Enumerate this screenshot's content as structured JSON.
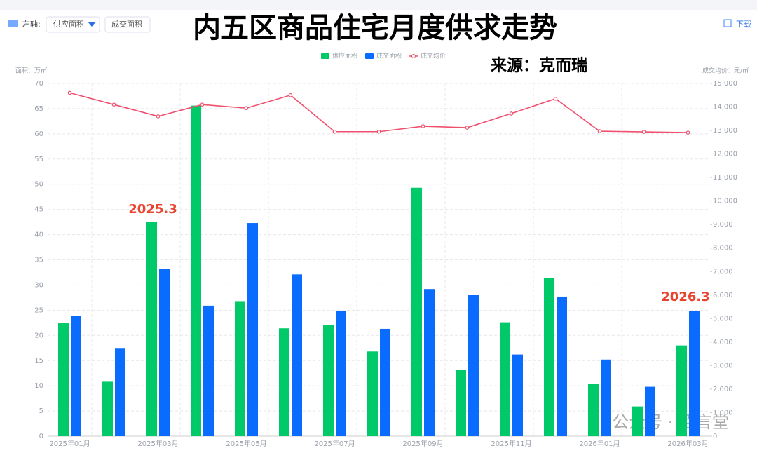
{
  "chart_data": {
    "type": "bar",
    "title": "内五区商品住宅月度供求走势",
    "source": "来源：克而瑞",
    "toolbar": {
      "axis_label": "左轴:",
      "dropdown": "供应面积",
      "option": "成交面积",
      "download": "下载"
    },
    "watermark": "公众号 · 佰言堂",
    "ylabel": "面积：万㎡",
    "y2label": "成交均价：元/㎡",
    "categories": [
      "2025年01月",
      null,
      "2025年03月",
      null,
      "2025年05月",
      null,
      "2025年07月",
      null,
      "2025年09月",
      null,
      "2025年11月",
      null,
      "2026年01月",
      null,
      "2026年03月"
    ],
    "series": [
      {
        "name": "供应面积",
        "color": "#00c96a",
        "values": [
          22.4,
          10.8,
          42.5,
          65.6,
          26.8,
          21.4,
          22.1,
          16.8,
          49.3,
          13.2,
          22.6,
          31.4,
          10.4,
          5.9,
          18.0
        ]
      },
      {
        "name": "成交面积",
        "color": "#0a6cff",
        "values": [
          23.8,
          17.5,
          33.2,
          25.9,
          42.3,
          32.1,
          24.9,
          21.3,
          29.2,
          28.1,
          16.2,
          27.7,
          15.2,
          9.8,
          24.9
        ]
      },
      {
        "name": "成交均价",
        "color": "#f0506e",
        "type": "line",
        "axis": "y2",
        "values": [
          14600,
          14100,
          13600,
          14100,
          13950,
          14500,
          12950,
          12950,
          13180,
          13120,
          13720,
          14350,
          12970,
          12940,
          12910
        ]
      }
    ],
    "ylim": [
      0,
      70
    ],
    "yticks": [
      0,
      5,
      10,
      15,
      20,
      25,
      30,
      35,
      40,
      45,
      50,
      55,
      60,
      65,
      70
    ],
    "y2lim": [
      0,
      15000
    ],
    "y2ticks": [
      0,
      {
        "value": 1000,
        "label": "1,000"
      },
      {
        "value": 2000,
        "label": "2,000"
      },
      {
        "value": 3000,
        "label": "3,000"
      },
      {
        "value": 4000,
        "label": "4,000"
      },
      {
        "value": 5000,
        "label": "5,000"
      },
      {
        "value": 6000,
        "label": "6,000"
      },
      {
        "value": 7000,
        "label": "7,000"
      },
      {
        "value": 8000,
        "label": "8,000"
      },
      {
        "value": 9000,
        "label": "9,000"
      },
      {
        "value": 10000,
        "label": "10,000"
      },
      {
        "value": 11000,
        "label": "11,000"
      },
      {
        "value": 12000,
        "label": "12,000"
      },
      {
        "value": 13000,
        "label": "13,000"
      },
      {
        "value": 14000,
        "label": "14,000"
      },
      {
        "value": 15000,
        "label": "15,000"
      }
    ],
    "grid": true,
    "annotations": [
      "2025.3",
      "2026.3"
    ]
  }
}
